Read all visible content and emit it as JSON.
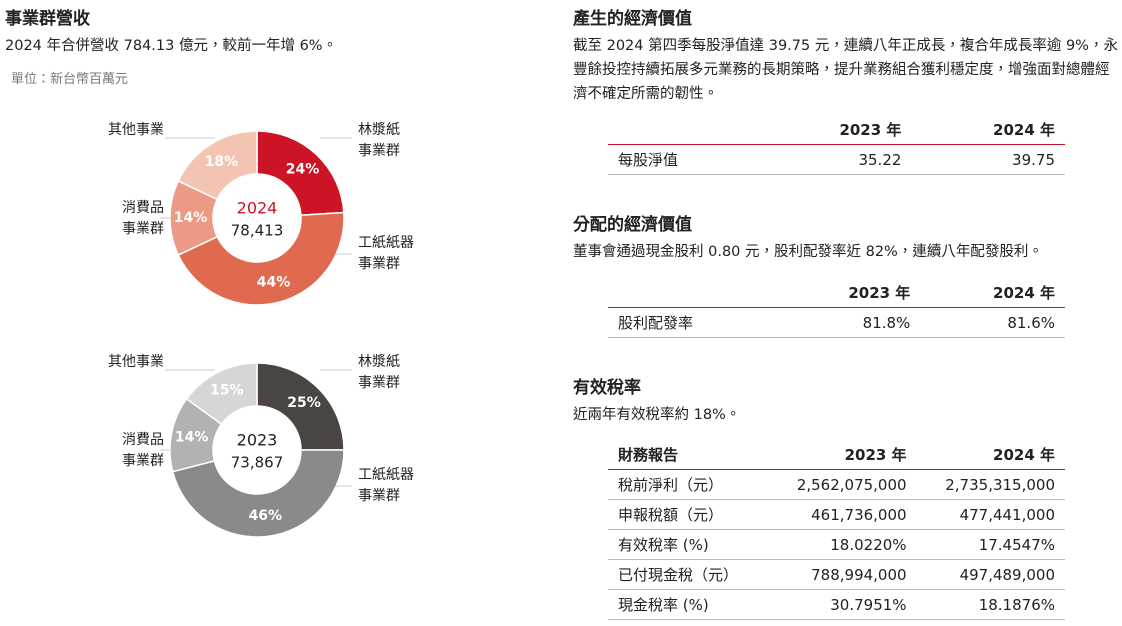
{
  "revenue": {
    "title": "事業群營收",
    "subtitle": "2024 年合併營收 784.13 億元，較前一年增 6%。",
    "unit": "單位：新台幣百萬元"
  },
  "chart_data": [
    {
      "type": "pie",
      "center_title": "2024",
      "center_value": "78,413",
      "categories": [
        "林漿紙\n事業群",
        "工紙紙器\n事業群",
        "消費品\n事業群",
        "其他事業"
      ],
      "values": [
        24,
        44,
        14,
        18
      ],
      "value_labels": [
        "24%",
        "44%",
        "14%",
        "18%"
      ],
      "colors": [
        "#cc1426",
        "#e06a50",
        "#ec9a85",
        "#f2c4b1"
      ],
      "center_color": "#cc1426"
    },
    {
      "type": "pie",
      "center_title": "2023",
      "center_value": "73,867",
      "categories": [
        "林漿紙\n事業群",
        "工紙紙器\n事業群",
        "消費品\n事業群",
        "其他事業"
      ],
      "values": [
        25,
        46,
        14,
        15
      ],
      "value_labels": [
        "25%",
        "46%",
        "14%",
        "15%"
      ],
      "colors": [
        "#4a4443",
        "#8a8a8a",
        "#b2b2b2",
        "#d6d6d6"
      ],
      "center_color": "#222222"
    }
  ],
  "sections": [
    {
      "title": "產生的經濟價值",
      "text": "截至 2024 第四季每股淨值達 39.75 元，連續八年正成長，複合年成長率逾 9%，永豐餘投控持續拓展多元業務的長期策略，提升業務組合獲利穩定度，增強面對總體經濟不確定所需的韌性。",
      "table": {
        "header": [
          "2023 年",
          "2024 年"
        ],
        "rows": [
          [
            "每股淨值",
            "35.22",
            "39.75"
          ]
        ]
      }
    },
    {
      "title": "分配的經濟價值",
      "text": "董事會通過現金股利 0.80 元，股利配發率近 82%，連續八年配發股利。",
      "table": {
        "header": [
          "2023 年",
          "2024 年"
        ],
        "rows": [
          [
            "股利配發率",
            "81.8%",
            "81.6%"
          ]
        ]
      }
    },
    {
      "title": "有效稅率",
      "text": "近兩年有效稅率約 18%。",
      "table": {
        "header": [
          "財務報告",
          "2023 年",
          "2024 年"
        ],
        "rows": [
          [
            "稅前淨利（元）",
            "2,562,075,000",
            "2,735,315,000"
          ],
          [
            "申報稅額（元）",
            "461,736,000",
            "477,441,000"
          ],
          [
            "有效稅率 (%)",
            "18.0220%",
            "17.4547%"
          ],
          [
            "已付現金稅（元）",
            "788,994,000",
            "497,489,000"
          ],
          [
            "現金稅率 (%)",
            "30.7951%",
            "18.1876%"
          ]
        ]
      }
    }
  ]
}
